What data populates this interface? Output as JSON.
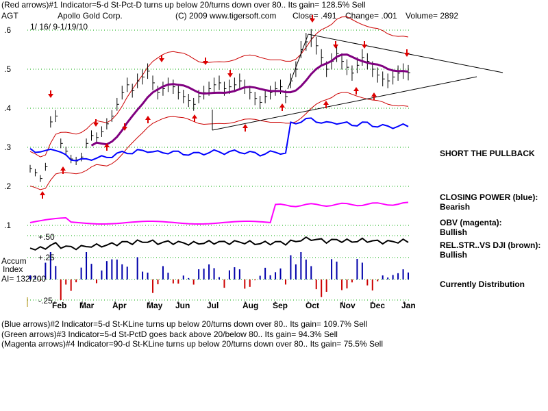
{
  "header": {
    "line1": "(Red arrows)#1 Indicator=5-d St-Pct-D turns up below 20/turns down over 80.. Its gain= 128.5% Sell",
    "symbol": "AGT",
    "company": "Apollo Gold Corp.",
    "copyright": "(C) 2009 www.tigersoft.com",
    "close": "Close= .491",
    "change": "Change= .001",
    "volume": "Volume= 2892",
    "date_range": "1/ 16/ 9-1/19/10"
  },
  "footer": {
    "line1": "(Blue arrows)#2 Indicator=5-d St-KLine turns up below 20/turns down over 80.. Its gain= 109.7% Sell",
    "line2": "(Green arrows)#3 Indicator=5-d St-PctD goes back above 20/below 80.. Its gain= 94.3% Sell",
    "line3": "(Magenta arrows)#4 Indicator=90-d St-KLine turns up below 20/turns down over 80.. Its gain= 75.5% Sell"
  },
  "side_notes": {
    "short": "SHORT THE PULLBACK",
    "cp_label": "CLOSING POWER (blue):",
    "cp_value": "Bearish",
    "obv_label": "OBV (magenta):",
    "obv_value": "Bullish",
    "rel_label": "REL.STR..VS DJI (brown):",
    "rel_value": "Bullish",
    "distribution": "Currently Distribution"
  },
  "accum": {
    "label1": "Accum",
    "label2": "Index",
    "ai": "AI= 132/200",
    "tick_hi": "+.50",
    "tick_mid": "+.25",
    "tick_lo": "-.25"
  },
  "colors": {
    "price_bars": "#000000",
    "bands": "#cc0000",
    "moving_average": "#800080",
    "closing_power": "#0000ff",
    "obv": "#ff00ff",
    "rel_strength": "#000000",
    "accum_pos": "#0000aa",
    "accum_neg": "#cc0000",
    "grid": "#00aa00",
    "trendline": "#000000"
  },
  "chart_data": {
    "type": "line",
    "y_ticks": [
      ".6",
      ".5",
      ".4",
      ".3",
      ".2",
      ".1"
    ],
    "ylim": [
      0.1,
      0.6
    ],
    "x_ticks": [
      "Feb",
      "Mar",
      "Apr",
      "May",
      "Jun",
      "Jul",
      "Aug",
      "Sep",
      "Oct",
      "Nov",
      "Dec",
      "Jan"
    ],
    "series": [
      {
        "key": "price_close",
        "values": [
          0.245,
          0.235,
          0.22,
          0.25,
          0.365,
          0.38,
          0.31,
          0.29,
          0.27,
          0.265,
          0.275,
          0.31,
          0.33,
          0.325,
          0.34,
          0.36,
          0.38,
          0.41,
          0.44,
          0.46,
          0.445,
          0.47,
          0.48,
          0.495,
          0.465,
          0.44,
          0.45,
          0.46,
          0.455,
          0.44,
          0.43,
          0.42,
          0.41,
          0.43,
          0.44,
          0.45,
          0.46,
          0.465,
          0.45,
          0.455,
          0.46,
          0.47,
          0.455,
          0.44,
          0.425,
          0.415,
          0.43,
          0.44,
          0.45,
          0.455,
          0.43,
          0.47,
          0.5,
          0.55,
          0.57,
          0.58,
          0.56,
          0.53,
          0.5,
          0.52,
          0.54,
          0.52,
          0.505,
          0.49,
          0.51,
          0.53,
          0.52,
          0.5,
          0.485,
          0.475,
          0.47,
          0.48,
          0.49,
          0.495,
          0.491
        ]
      }
    ]
  }
}
